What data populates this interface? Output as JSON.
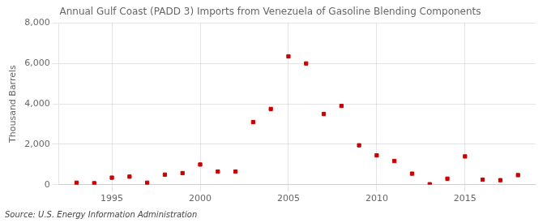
{
  "chart_data": {
    "type": "scatter",
    "title": "Annual Gulf Coast (PADD 3) Imports from Venezuela of Gasoline Blending Components",
    "y_label": "Thousand Barrels",
    "annotations": [
      "Source: U.S. Energy Information Administration"
    ],
    "x": [
      1993,
      1994,
      1995,
      1996,
      1997,
      1998,
      1999,
      2000,
      2001,
      2002,
      2003,
      2004,
      2005,
      2006,
      2007,
      2008,
      2009,
      2010,
      2011,
      2012,
      2013,
      2014,
      2015,
      2016,
      2017,
      2018
    ],
    "values": [
      100,
      75,
      350,
      400,
      100,
      500,
      575,
      1000,
      650,
      650,
      3100,
      3750,
      6350,
      6000,
      3500,
      3900,
      1950,
      1450,
      1175,
      550,
      25,
      300,
      1400,
      250,
      225,
      475
    ],
    "color": "#cc0000",
    "marker": "square",
    "xlim": [
      1992.0,
      2019.0
    ],
    "xticks": [
      1995,
      2000,
      2005,
      2010,
      2015
    ],
    "ylim": [
      0,
      8000
    ],
    "yticks": [
      0,
      {
        "value": 2000,
        "label": "2,000"
      },
      {
        "value": 4000,
        "label": "4,000"
      },
      {
        "value": 6000,
        "label": "6,000"
      },
      {
        "value": 8000,
        "label": "8,000"
      }
    ],
    "grid": true
  }
}
